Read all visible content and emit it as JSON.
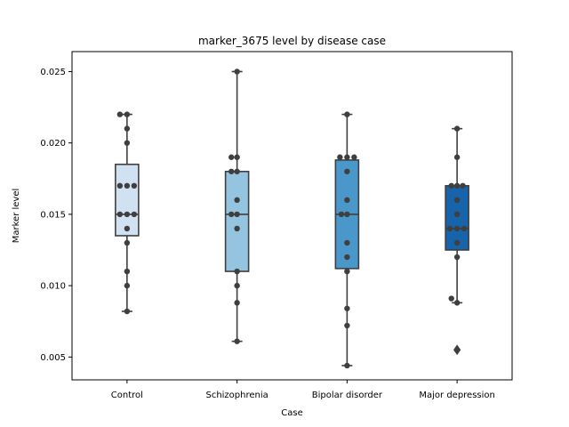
{
  "chart_data": {
    "type": "box",
    "title": "marker_3675 level by disease case",
    "xlabel": "Case",
    "ylabel": "Marker level",
    "ylim": [
      0.0034,
      0.0264
    ],
    "yticks": [
      0.005,
      0.01,
      0.015,
      0.02,
      0.025
    ],
    "ytick_labels": [
      "0.005",
      "0.010",
      "0.015",
      "0.020",
      "0.025"
    ],
    "categories": [
      "Control",
      "Schizophrenia",
      "Bipolar disorder",
      "Major depression"
    ],
    "colors": [
      "#d0e1f2",
      "#94c4df",
      "#4a98c9",
      "#1764ab"
    ],
    "boxes": [
      {
        "q1": 0.0135,
        "median": 0.015,
        "q3": 0.0185,
        "whisker_low": 0.0082,
        "whisker_high": 0.022,
        "outliers": []
      },
      {
        "q1": 0.011,
        "median": 0.015,
        "q3": 0.018,
        "whisker_low": 0.0061,
        "whisker_high": 0.025,
        "outliers": []
      },
      {
        "q1": 0.0112,
        "median": 0.015,
        "q3": 0.0188,
        "whisker_low": 0.0044,
        "whisker_high": 0.022,
        "outliers": []
      },
      {
        "q1": 0.0125,
        "median": 0.014,
        "q3": 0.017,
        "whisker_low": 0.0088,
        "whisker_high": 0.021,
        "outliers": [
          0.0055
        ]
      }
    ],
    "points": [
      [
        {
          "y": 0.022,
          "dx": -0.1
        },
        {
          "y": 0.022,
          "dx": 0.0
        },
        {
          "y": 0.021,
          "dx": 0.0
        },
        {
          "y": 0.02,
          "dx": 0.0
        },
        {
          "y": 0.017,
          "dx": -0.1
        },
        {
          "y": 0.017,
          "dx": 0.0
        },
        {
          "y": 0.017,
          "dx": 0.1
        },
        {
          "y": 0.015,
          "dx": -0.1
        },
        {
          "y": 0.015,
          "dx": 0.0
        },
        {
          "y": 0.015,
          "dx": 0.1
        },
        {
          "y": 0.014,
          "dx": 0.0
        },
        {
          "y": 0.013,
          "dx": 0.0
        },
        {
          "y": 0.011,
          "dx": 0.0
        },
        {
          "y": 0.01,
          "dx": 0.0
        },
        {
          "y": 0.0082,
          "dx": 0.0
        }
      ],
      [
        {
          "y": 0.025,
          "dx": 0.0
        },
        {
          "y": 0.019,
          "dx": -0.08
        },
        {
          "y": 0.019,
          "dx": 0.0
        },
        {
          "y": 0.018,
          "dx": -0.08
        },
        {
          "y": 0.018,
          "dx": 0.0
        },
        {
          "y": 0.016,
          "dx": 0.0
        },
        {
          "y": 0.015,
          "dx": -0.08
        },
        {
          "y": 0.015,
          "dx": 0.0
        },
        {
          "y": 0.014,
          "dx": 0.0
        },
        {
          "y": 0.011,
          "dx": 0.0
        },
        {
          "y": 0.01,
          "dx": 0.0
        },
        {
          "y": 0.0088,
          "dx": 0.0
        },
        {
          "y": 0.0061,
          "dx": 0.0
        }
      ],
      [
        {
          "y": 0.022,
          "dx": 0.0
        },
        {
          "y": 0.019,
          "dx": -0.1
        },
        {
          "y": 0.019,
          "dx": 0.0
        },
        {
          "y": 0.019,
          "dx": 0.1
        },
        {
          "y": 0.018,
          "dx": 0.0
        },
        {
          "y": 0.016,
          "dx": 0.0
        },
        {
          "y": 0.015,
          "dx": -0.08
        },
        {
          "y": 0.015,
          "dx": 0.0
        },
        {
          "y": 0.013,
          "dx": 0.0
        },
        {
          "y": 0.012,
          "dx": 0.0
        },
        {
          "y": 0.011,
          "dx": 0.0
        },
        {
          "y": 0.0084,
          "dx": 0.0
        },
        {
          "y": 0.0072,
          "dx": 0.0
        },
        {
          "y": 0.0044,
          "dx": 0.0
        }
      ],
      [
        {
          "y": 0.021,
          "dx": 0.0
        },
        {
          "y": 0.019,
          "dx": 0.0
        },
        {
          "y": 0.017,
          "dx": -0.08
        },
        {
          "y": 0.017,
          "dx": 0.0
        },
        {
          "y": 0.017,
          "dx": 0.08
        },
        {
          "y": 0.016,
          "dx": 0.0
        },
        {
          "y": 0.015,
          "dx": 0.0
        },
        {
          "y": 0.014,
          "dx": -0.1
        },
        {
          "y": 0.014,
          "dx": 0.0
        },
        {
          "y": 0.014,
          "dx": 0.1
        },
        {
          "y": 0.013,
          "dx": 0.0
        },
        {
          "y": 0.012,
          "dx": 0.0
        },
        {
          "y": 0.0091,
          "dx": -0.08
        },
        {
          "y": 0.0088,
          "dx": 0.0
        },
        {
          "y": 0.0055,
          "dx": 0.0
        }
      ]
    ],
    "grid": false,
    "legend": "none"
  }
}
